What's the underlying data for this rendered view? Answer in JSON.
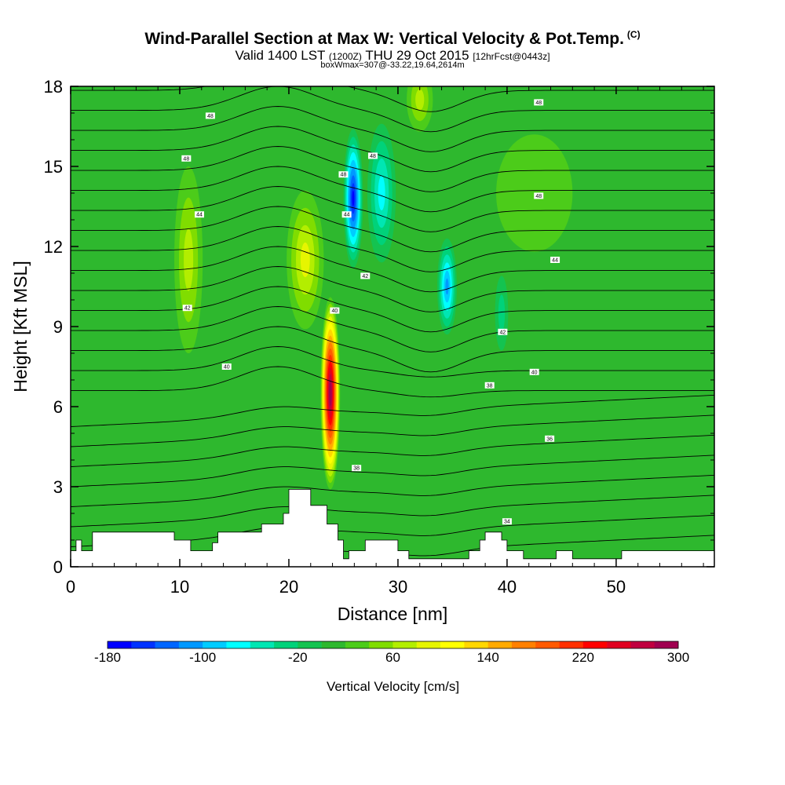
{
  "header": {
    "title": "Wind-Parallel Section at Max W: Vertical Velocity & Pot.Temp.",
    "copyright": "(C)",
    "subtitle_main": "Valid 1400 LST",
    "subtitle_utc": "(1200Z)",
    "subtitle_date": "THU 29 Oct 2015",
    "subtitle_fcst": "[12hrFcst@0443z]",
    "box_info": "boxWmax=307@-33.22,19.64,2614m"
  },
  "chart_data": {
    "type": "contour",
    "xlabel": "Distance [nm]",
    "ylabel": "Height [Kft MSL]",
    "xlim": [
      0,
      59
    ],
    "ylim": [
      0,
      18
    ],
    "x_ticks": [
      "0",
      "10",
      "20",
      "30",
      "40",
      "50"
    ],
    "y_ticks": [
      "0",
      "3",
      "6",
      "9",
      "12",
      "15",
      "18"
    ],
    "colorbar": {
      "label": "Vertical Velocity [cm/s]",
      "ticks": [
        "-180",
        "-100",
        "-20",
        "60",
        "140",
        "220",
        "300"
      ],
      "levels": [
        -180,
        300
      ],
      "colors": [
        "#0000ff",
        "#0033ff",
        "#0066ff",
        "#0099ff",
        "#00ccff",
        "#00ffff",
        "#00e6b3",
        "#00d27a",
        "#14c350",
        "#2eb82e",
        "#4ccc1a",
        "#80dd00",
        "#b3ee00",
        "#e6f500",
        "#ffff00",
        "#ffd700",
        "#ffaa00",
        "#ff8000",
        "#ff5a00",
        "#ff3000",
        "#ff0000",
        "#e00020",
        "#c00040",
        "#a00050"
      ]
    },
    "terrain_kft": [
      [
        0,
        0.6
      ],
      [
        0.5,
        0.6
      ],
      [
        0.5,
        1.0
      ],
      [
        1.0,
        1.0
      ],
      [
        1.0,
        0.6
      ],
      [
        2.0,
        0.6
      ],
      [
        2.0,
        1.3
      ],
      [
        7.5,
        1.3
      ],
      [
        7.5,
        1.3
      ],
      [
        9.5,
        1.3
      ],
      [
        9.5,
        1.0
      ],
      [
        11.0,
        1.0
      ],
      [
        11.0,
        0.6
      ],
      [
        13.0,
        0.6
      ],
      [
        13.0,
        0.9
      ],
      [
        13.5,
        0.9
      ],
      [
        13.5,
        1.3
      ],
      [
        17.5,
        1.3
      ],
      [
        17.5,
        1.6
      ],
      [
        19.5,
        1.6
      ],
      [
        19.5,
        2.0
      ],
      [
        20.0,
        2.0
      ],
      [
        20.0,
        2.9
      ],
      [
        22.0,
        2.9
      ],
      [
        22.0,
        2.3
      ],
      [
        23.5,
        2.3
      ],
      [
        23.5,
        1.6
      ],
      [
        24.5,
        1.6
      ],
      [
        24.5,
        1.0
      ],
      [
        25.0,
        1.0
      ],
      [
        25.0,
        0.6
      ],
      [
        25.0,
        0.3
      ],
      [
        25.5,
        0.3
      ],
      [
        25.5,
        0.6
      ],
      [
        27.0,
        0.6
      ],
      [
        27.0,
        1.0
      ],
      [
        30.0,
        1.0
      ],
      [
        30.0,
        0.6
      ],
      [
        31.0,
        0.6
      ],
      [
        31.0,
        0.3
      ],
      [
        36.5,
        0.3
      ],
      [
        36.5,
        0.6
      ],
      [
        37.5,
        0.6
      ],
      [
        37.5,
        1.0
      ],
      [
        38.0,
        1.0
      ],
      [
        38.0,
        1.3
      ],
      [
        39.5,
        1.3
      ],
      [
        39.5,
        1.0
      ],
      [
        40.0,
        1.0
      ],
      [
        40.0,
        0.6
      ],
      [
        41.5,
        0.6
      ],
      [
        41.5,
        0.3
      ],
      [
        44.5,
        0.3
      ],
      [
        44.5,
        0.6
      ],
      [
        46.0,
        0.6
      ],
      [
        46.0,
        0.3
      ],
      [
        50.5,
        0.3
      ],
      [
        50.5,
        0.6
      ],
      [
        59,
        0.6
      ]
    ],
    "w_features": [
      {
        "x": 23.8,
        "y": 6.5,
        "rx": 0.9,
        "ry": 3.6,
        "w": 300
      },
      {
        "x": 21.5,
        "y": 11.5,
        "rx": 1.7,
        "ry": 2.6,
        "w": 80
      },
      {
        "x": 10.8,
        "y": 11.5,
        "rx": 1.3,
        "ry": 3.5,
        "w": 70
      },
      {
        "x": 25.9,
        "y": 13.8,
        "rx": 0.9,
        "ry": 2.6,
        "w": -170
      },
      {
        "x": 34.5,
        "y": 10.5,
        "rx": 0.9,
        "ry": 1.8,
        "w": -110
      },
      {
        "x": 39.5,
        "y": 9.5,
        "rx": 0.6,
        "ry": 1.4,
        "w": -40
      },
      {
        "x": 42.5,
        "y": 14.0,
        "rx": 3.5,
        "ry": 2.2,
        "w": 30
      },
      {
        "x": 28.5,
        "y": 14.0,
        "rx": 1.3,
        "ry": 2.6,
        "w": -70
      },
      {
        "x": 32.0,
        "y": 17.5,
        "rx": 1.2,
        "ry": 1.2,
        "w": 60
      }
    ],
    "theta_labels": [
      {
        "text": "48",
        "x": 12.8,
        "y": 16.9
      },
      {
        "text": "48",
        "x": 10.6,
        "y": 15.3
      },
      {
        "text": "44",
        "x": 11.8,
        "y": 13.2
      },
      {
        "text": "42",
        "x": 10.7,
        "y": 9.7
      },
      {
        "text": "40",
        "x": 14.3,
        "y": 7.5
      },
      {
        "text": "48",
        "x": 25.0,
        "y": 14.7
      },
      {
        "text": "48",
        "x": 27.7,
        "y": 15.4
      },
      {
        "text": "44",
        "x": 25.3,
        "y": 13.2
      },
      {
        "text": "42",
        "x": 27.0,
        "y": 10.9
      },
      {
        "text": "40",
        "x": 24.2,
        "y": 9.6
      },
      {
        "text": "38",
        "x": 26.2,
        "y": 3.7
      },
      {
        "text": "48",
        "x": 42.9,
        "y": 17.4
      },
      {
        "text": "48",
        "x": 42.9,
        "y": 13.9
      },
      {
        "text": "44",
        "x": 44.4,
        "y": 11.5
      },
      {
        "text": "42",
        "x": 39.6,
        "y": 8.8
      },
      {
        "text": "40",
        "x": 42.5,
        "y": 7.3
      },
      {
        "text": "38",
        "x": 38.4,
        "y": 6.8
      },
      {
        "text": "36",
        "x": 43.9,
        "y": 4.8
      },
      {
        "text": "34",
        "x": 40.0,
        "y": 1.7
      }
    ]
  }
}
